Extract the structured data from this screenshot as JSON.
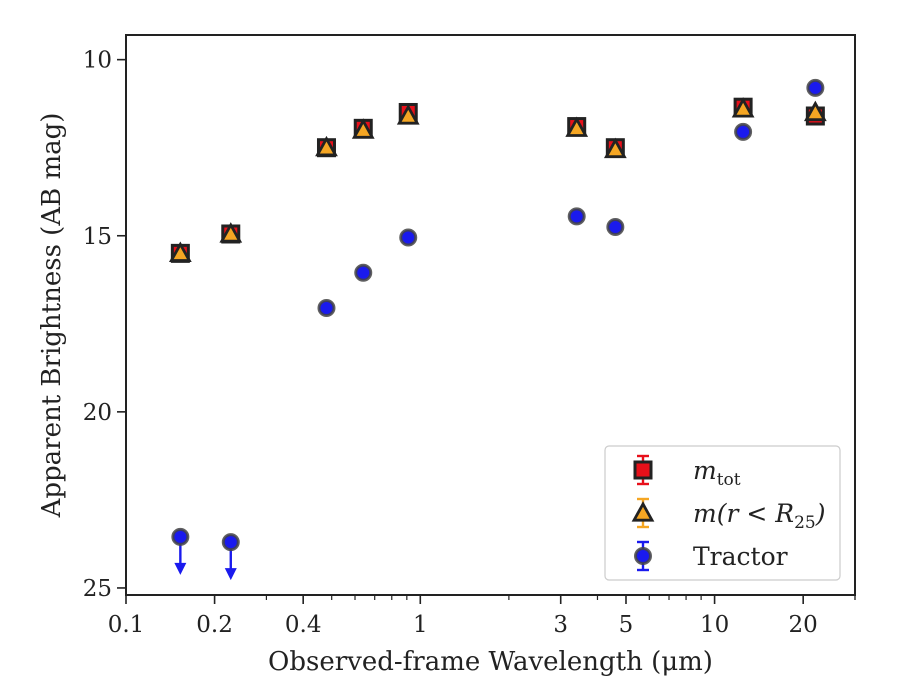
{
  "chart_data": {
    "type": "scatter",
    "xlabel": "Observed-frame Wavelength (μm)",
    "ylabel": "Apparent Brightness (AB mag)",
    "x_scale": "log",
    "xlim": [
      0.1,
      30
    ],
    "ylim": [
      25.2,
      9.3
    ],
    "y_inverted": true,
    "x_ticks": [
      {
        "value": 0.1,
        "label": "0.1"
      },
      {
        "value": 0.2,
        "label": "0.2"
      },
      {
        "value": 0.4,
        "label": "0.4"
      },
      {
        "value": 1,
        "label": "1"
      },
      {
        "value": 3,
        "label": "3"
      },
      {
        "value": 5,
        "label": "5"
      },
      {
        "value": 10,
        "label": "10"
      },
      {
        "value": 20,
        "label": "20"
      }
    ],
    "y_ticks": [
      {
        "value": 10,
        "label": "10"
      },
      {
        "value": 15,
        "label": "15"
      },
      {
        "value": 20,
        "label": "20"
      },
      {
        "value": 25,
        "label": "25"
      }
    ],
    "grid": false,
    "legend": {
      "placement": "lower-right"
    },
    "series": [
      {
        "name": "m_tot",
        "legend_main": "m",
        "legend_sub": "tot",
        "marker": "square",
        "color": "#e8101a",
        "edge_color": "#222222",
        "points": [
          {
            "x": 0.153,
            "y": 15.5
          },
          {
            "x": 0.227,
            "y": 14.95
          },
          {
            "x": 0.48,
            "y": 12.5
          },
          {
            "x": 0.64,
            "y": 11.95
          },
          {
            "x": 0.91,
            "y": 11.5
          },
          {
            "x": 3.4,
            "y": 11.9
          },
          {
            "x": 4.6,
            "y": 12.5
          },
          {
            "x": 12.5,
            "y": 11.35
          },
          {
            "x": 22.0,
            "y": 11.6
          }
        ]
      },
      {
        "name": "m(r < R_25)",
        "legend_main": "m(r < R",
        "legend_sub": "25",
        "legend_end": ")",
        "marker": "triangle",
        "color": "#f5a623",
        "edge_color": "#222222",
        "points": [
          {
            "x": 0.153,
            "y": 15.5
          },
          {
            "x": 0.227,
            "y": 14.95
          },
          {
            "x": 0.48,
            "y": 12.5
          },
          {
            "x": 0.64,
            "y": 12.0
          },
          {
            "x": 0.91,
            "y": 11.6
          },
          {
            "x": 3.4,
            "y": 11.95
          },
          {
            "x": 4.6,
            "y": 12.55
          },
          {
            "x": 12.5,
            "y": 11.4
          },
          {
            "x": 22.0,
            "y": 11.5
          }
        ]
      },
      {
        "name": "Tractor",
        "legend_main": "Tractor",
        "marker": "circle",
        "color": "#1a1aee",
        "edge_color": "#444444",
        "points": [
          {
            "x": 0.153,
            "y": 23.55,
            "upper_limit": true
          },
          {
            "x": 0.227,
            "y": 23.7,
            "upper_limit": true
          },
          {
            "x": 0.48,
            "y": 17.05
          },
          {
            "x": 0.64,
            "y": 16.05
          },
          {
            "x": 0.91,
            "y": 15.05
          },
          {
            "x": 3.4,
            "y": 14.45
          },
          {
            "x": 4.6,
            "y": 14.75
          },
          {
            "x": 12.5,
            "y": 12.05
          },
          {
            "x": 22.0,
            "y": 10.8
          }
        ]
      }
    ]
  }
}
